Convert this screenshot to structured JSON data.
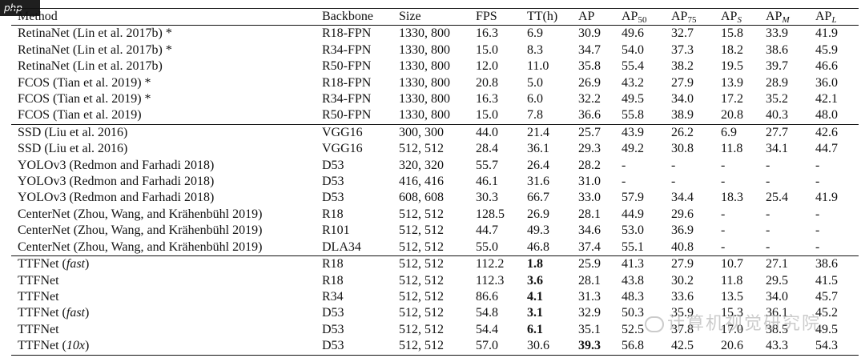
{
  "watermark": {
    "corner": "php",
    "text": "计算机视觉研究院"
  },
  "headers": [
    "Method",
    "Backbone",
    "Size",
    "FPS",
    "TT(h)",
    "AP",
    "AP",
    "AP",
    "AP",
    "AP",
    "AP"
  ],
  "header_subscripts": [
    "",
    "",
    "",
    "",
    "",
    "",
    "50",
    "75",
    "S",
    "M",
    "L"
  ],
  "groups": [
    [
      [
        "RetinaNet (Lin et al. 2017b) *",
        "R18-FPN",
        "1330, 800",
        "16.3",
        "6.9",
        "30.9",
        "49.6",
        "32.7",
        "15.8",
        "33.9",
        "41.9"
      ],
      [
        "RetinaNet (Lin et al. 2017b) *",
        "R34-FPN",
        "1330, 800",
        "15.0",
        "8.3",
        "34.7",
        "54.0",
        "37.3",
        "18.2",
        "38.6",
        "45.9"
      ],
      [
        "RetinaNet (Lin et al. 2017b)",
        "R50-FPN",
        "1330, 800",
        "12.0",
        "11.0",
        "35.8",
        "55.4",
        "38.2",
        "19.5",
        "39.7",
        "46.6"
      ],
      [
        "FCOS (Tian et al. 2019) *",
        "R18-FPN",
        "1330, 800",
        "20.8",
        "5.0",
        "26.9",
        "43.2",
        "27.9",
        "13.9",
        "28.9",
        "36.0"
      ],
      [
        "FCOS (Tian et al. 2019) *",
        "R34-FPN",
        "1330, 800",
        "16.3",
        "6.0",
        "32.2",
        "49.5",
        "34.0",
        "17.2",
        "35.2",
        "42.1"
      ],
      [
        "FCOS (Tian et al. 2019)",
        "R50-FPN",
        "1330, 800",
        "15.0",
        "7.8",
        "36.6",
        "55.8",
        "38.9",
        "20.8",
        "40.3",
        "48.0"
      ]
    ],
    [
      [
        "SSD (Liu et al. 2016)",
        "VGG16",
        "300, 300",
        "44.0",
        "21.4",
        "25.7",
        "43.9",
        "26.2",
        "6.9",
        "27.7",
        "42.6"
      ],
      [
        "SSD (Liu et al. 2016)",
        "VGG16",
        "512, 512",
        "28.4",
        "36.1",
        "29.3",
        "49.2",
        "30.8",
        "11.8",
        "34.1",
        "44.7"
      ],
      [
        "YOLOv3 (Redmon and Farhadi 2018)",
        "D53",
        "320, 320",
        "55.7",
        "26.4",
        "28.2",
        "-",
        "-",
        "-",
        "-",
        "-"
      ],
      [
        "YOLOv3 (Redmon and Farhadi 2018)",
        "D53",
        "416, 416",
        "46.1",
        "31.6",
        "31.0",
        "-",
        "-",
        "-",
        "-",
        "-"
      ],
      [
        "YOLOv3 (Redmon and Farhadi 2018)",
        "D53",
        "608, 608",
        "30.3",
        "66.7",
        "33.0",
        "57.9",
        "34.4",
        "18.3",
        "25.4",
        "41.9"
      ],
      [
        "CenterNet (Zhou, Wang, and Krähenbühl 2019)",
        "R18",
        "512, 512",
        "128.5",
        "26.9",
        "28.1",
        "44.9",
        "29.6",
        "-",
        "-",
        "-"
      ],
      [
        "CenterNet (Zhou, Wang, and Krähenbühl 2019)",
        "R101",
        "512, 512",
        "44.7",
        "49.3",
        "34.6",
        "53.0",
        "36.9",
        "-",
        "-",
        "-"
      ],
      [
        "CenterNet (Zhou, Wang, and Krähenbühl 2019)",
        "DLA34",
        "512, 512",
        "55.0",
        "46.8",
        "37.4",
        "55.1",
        "40.8",
        "-",
        "-",
        "-"
      ]
    ],
    [
      [
        "TTFNet (fast)",
        "R18",
        "512, 512",
        "112.2",
        "1.8",
        "25.9",
        "41.3",
        "27.9",
        "10.7",
        "27.1",
        "38.6"
      ],
      [
        "TTFNet",
        "R18",
        "512, 512",
        "112.3",
        "3.6",
        "28.1",
        "43.8",
        "30.2",
        "11.8",
        "29.5",
        "41.5"
      ],
      [
        "TTFNet",
        "R34",
        "512, 512",
        "86.6",
        "4.1",
        "31.3",
        "48.3",
        "33.6",
        "13.5",
        "34.0",
        "45.7"
      ],
      [
        "TTFNet (fast)",
        "D53",
        "512, 512",
        "54.8",
        "3.1",
        "32.9",
        "50.3",
        "35.9",
        "15.3",
        "36.1",
        "45.2"
      ],
      [
        "TTFNet",
        "D53",
        "512, 512",
        "54.4",
        "6.1",
        "35.1",
        "52.5",
        "37.8",
        "17.0",
        "38.5",
        "49.5"
      ],
      [
        "TTFNet (10x)",
        "D53",
        "512, 512",
        "57.0",
        "30.6",
        "39.3",
        "56.8",
        "42.5",
        "20.6",
        "43.3",
        "54.3"
      ]
    ]
  ],
  "bold_cells": [
    [
      2,
      0,
      4
    ],
    [
      2,
      1,
      4
    ],
    [
      2,
      2,
      4
    ],
    [
      2,
      3,
      4
    ],
    [
      2,
      4,
      4
    ],
    [
      2,
      5,
      5
    ]
  ]
}
